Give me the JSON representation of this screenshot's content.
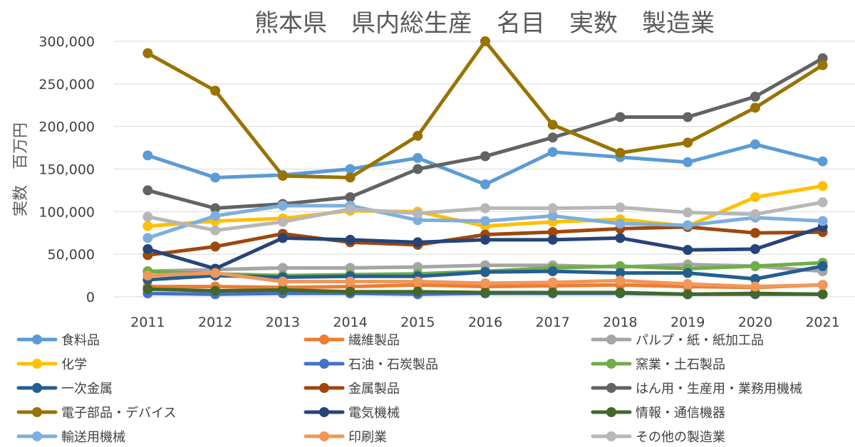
{
  "chart_data": {
    "type": "line",
    "title": "熊本県　県内総生産　名目　実数　製造業",
    "ylabel": "実数　百万円",
    "xlabel": "",
    "ylim": [
      0,
      300000
    ],
    "yticks": [
      0,
      50000,
      100000,
      150000,
      200000,
      250000,
      300000
    ],
    "ytick_labels": [
      "0",
      "50,000",
      "100,000",
      "150,000",
      "200,000",
      "250,000",
      "300,000"
    ],
    "categories": [
      "2011",
      "2012",
      "2013",
      "2014",
      "2015",
      "2016",
      "2017",
      "2018",
      "2019",
      "2020",
      "2021"
    ],
    "grid": true,
    "legend_position": "bottom",
    "series": [
      {
        "name": "食料品",
        "color": "#5B9BD5",
        "values": [
          166000,
          140000,
          143000,
          150000,
          163000,
          132000,
          170000,
          164000,
          158000,
          179000,
          159000
        ]
      },
      {
        "name": "繊維製品",
        "color": "#ED7D31",
        "values": [
          12000,
          12000,
          11000,
          12000,
          14000,
          12000,
          13000,
          14000,
          12000,
          11000,
          14000
        ]
      },
      {
        "name": "パルプ・紙・紙加工品",
        "color": "#A5A5A5",
        "values": [
          30000,
          32000,
          34000,
          34000,
          35000,
          37000,
          37000,
          35000,
          38000,
          36000,
          30000
        ]
      },
      {
        "name": "化学",
        "color": "#FFC000",
        "values": [
          83000,
          89000,
          92000,
          101000,
          100000,
          83000,
          88000,
          91000,
          83000,
          117000,
          130000
        ]
      },
      {
        "name": "石油・石炭製品",
        "color": "#4472C4",
        "values": [
          4000,
          3000,
          4000,
          4000,
          3000,
          4000,
          4000,
          4000,
          3000,
          3000,
          3000
        ]
      },
      {
        "name": "窯業・土石製品",
        "color": "#70AD47",
        "values": [
          30000,
          27000,
          25000,
          26000,
          27000,
          30000,
          34000,
          36000,
          33000,
          36000,
          40000
        ]
      },
      {
        "name": "一次金属",
        "color": "#255E91",
        "values": [
          20000,
          25000,
          23000,
          24000,
          24000,
          29000,
          30000,
          28000,
          28000,
          21000,
          36000
        ]
      },
      {
        "name": "金属製品",
        "color": "#9E480E",
        "values": [
          49000,
          59000,
          74000,
          64000,
          61000,
          73000,
          76000,
          80000,
          82000,
          75000,
          76000
        ]
      },
      {
        "name": "はん用・生産用・業務用機械",
        "color": "#636363",
        "values": [
          125000,
          104000,
          109000,
          117000,
          150000,
          165000,
          187000,
          211000,
          211000,
          235000,
          280000
        ]
      },
      {
        "name": "電子部品・デバイス",
        "color": "#997300",
        "values": [
          286000,
          242000,
          142000,
          140000,
          189000,
          300000,
          202000,
          169000,
          181000,
          222000,
          272000
        ]
      },
      {
        "name": "電気機械",
        "color": "#264478",
        "values": [
          56000,
          33000,
          69000,
          67000,
          64000,
          67000,
          67000,
          69000,
          55000,
          56000,
          82000
        ]
      },
      {
        "name": "情報・通信機器",
        "color": "#43682B",
        "values": [
          9000,
          7000,
          8000,
          6000,
          6000,
          5000,
          5000,
          5000,
          3000,
          4000,
          3000
        ]
      },
      {
        "name": "輸送用機械",
        "color": "#7CAFDD",
        "values": [
          69000,
          95000,
          107000,
          107000,
          90000,
          89000,
          95000,
          86000,
          84000,
          93000,
          89000
        ]
      },
      {
        "name": "印刷業",
        "color": "#F1975A",
        "values": [
          25000,
          28000,
          18000,
          18000,
          18000,
          16000,
          17000,
          19000,
          15000,
          12000,
          14000
        ]
      },
      {
        "name": "その他の製造業",
        "color": "#B7B7B7",
        "values": [
          94000,
          78000,
          88000,
          103000,
          98000,
          104000,
          104000,
          105000,
          99000,
          97000,
          111000
        ]
      }
    ]
  }
}
